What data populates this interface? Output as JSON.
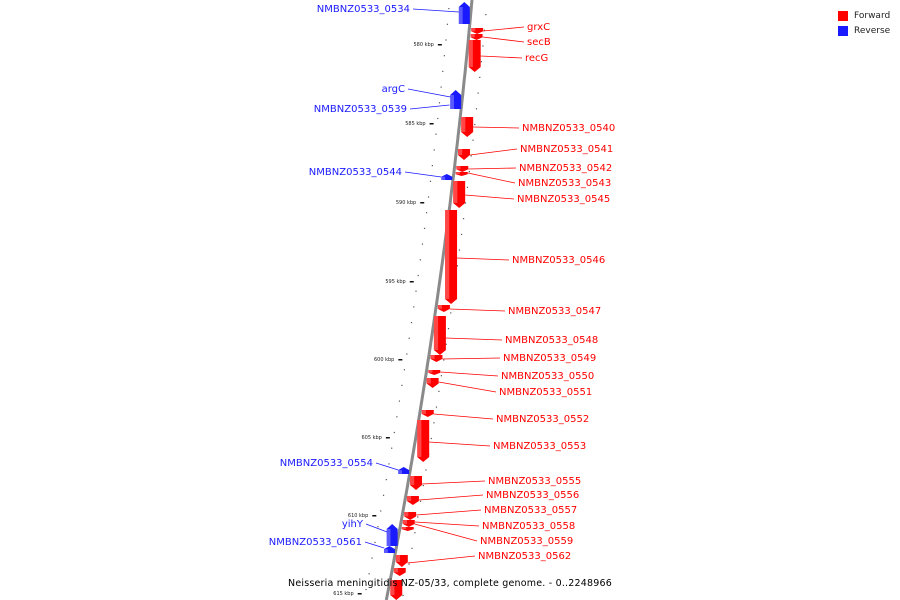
{
  "caption": "Neisseria meningitidis NZ-05/33, complete genome. - 0..2248966",
  "colors": {
    "forward": "#ff0000",
    "reverse": "#1a1aff",
    "backbone": "#8a8a8a"
  },
  "legend": [
    {
      "label": "Forward",
      "color": "#ff0000"
    },
    {
      "label": "Reverse",
      "color": "#1a1aff"
    }
  ],
  "ticks": [
    "580 kbp",
    "585 kbp",
    "590 kbp",
    "595 kbp",
    "600 kbp",
    "605 kbp",
    "610 kbp",
    "615 kbp"
  ],
  "forward_genes": [
    "grxC",
    "secB",
    "recG",
    "NMBNZ0533_0540",
    "NMBNZ0533_0541",
    "NMBNZ0533_0542",
    "NMBNZ0533_0543",
    "NMBNZ0533_0545",
    "NMBNZ0533_0546",
    "NMBNZ0533_0547",
    "NMBNZ0533_0548",
    "NMBNZ0533_0549",
    "NMBNZ0533_0550",
    "NMBNZ0533_0551",
    "NMBNZ0533_0552",
    "NMBNZ0533_0553",
    "NMBNZ0533_0555",
    "NMBNZ0533_0556",
    "NMBNZ0533_0557",
    "NMBNZ0533_0558",
    "NMBNZ0533_0559",
    "NMBNZ0533_0562"
  ],
  "reverse_genes": [
    "NMBNZ0533_0534",
    "argC",
    "NMBNZ0533_0539",
    "NMBNZ0533_0544",
    "NMBNZ0533_0554",
    "yihY",
    "NMBNZ0533_0561"
  ]
}
